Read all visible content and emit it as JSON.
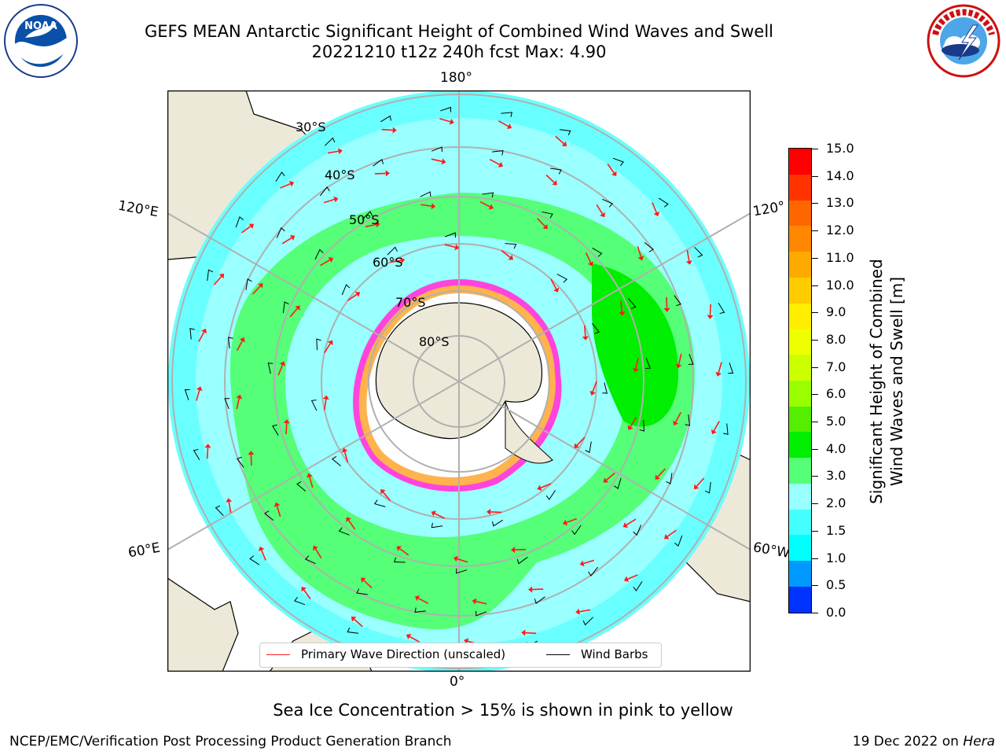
{
  "header": {
    "title_line1": "GEFS MEAN Antarctic Significant Height of Combined Wind Waves and Swell",
    "title_line2": "20221210 t12z 240h fcst   Max: 4.90"
  },
  "logos": {
    "left": "noaa-logo",
    "right": "nws-logo"
  },
  "map": {
    "lon_labels": {
      "top": "180°",
      "bottom": "0°",
      "upper_left": "120°E",
      "upper_right": "120°",
      "lower_left": "60°E",
      "lower_right": "60°W"
    },
    "lat_labels": [
      "30°S",
      "40°S",
      "50°S",
      "60°S",
      "70°S",
      "80°S"
    ],
    "colors": {
      "land": "#ede9d8",
      "ice_shelf": "#ffffff",
      "ice_pink": "#ff44dd",
      "ice_orange": "#ffb34d",
      "wave_arrow": "#ff1a1a",
      "wind_barb": "#000000"
    }
  },
  "legend": {
    "primary_wave": "Primary Wave Direction (unscaled)",
    "wind_barbs": "Wind Barbs"
  },
  "colorbar": {
    "label_line1": "Significant Height of Combined",
    "label_line2": "Wind Waves and Swell [m]",
    "ticks": [
      "15.0",
      "14.0",
      "13.0",
      "12.0",
      "11.0",
      "10.0",
      "9.0",
      "8.0",
      "7.0",
      "6.0",
      "5.0",
      "4.0",
      "3.0",
      "2.0",
      "1.5",
      "1.0",
      "0.5",
      "0.0"
    ],
    "bins_top_to_bottom": [
      "#ff0000",
      "#ff3300",
      "#ff6600",
      "#ff8800",
      "#ffaa00",
      "#ffcc00",
      "#ffee00",
      "#eeff00",
      "#ccff00",
      "#99ff00",
      "#55ee00",
      "#00ee00",
      "#55ff77",
      "#99ffff",
      "#44ffff",
      "#00ffff",
      "#0099ff",
      "#0033ff"
    ]
  },
  "footer": {
    "note": "Sea Ice Concentration > 15% is shown in pink to yellow",
    "left": "NCEP/EMC/Verification Post Processing Product Generation Branch",
    "right_date": "19 Dec 2022 on ",
    "right_machine": "Hera"
  }
}
